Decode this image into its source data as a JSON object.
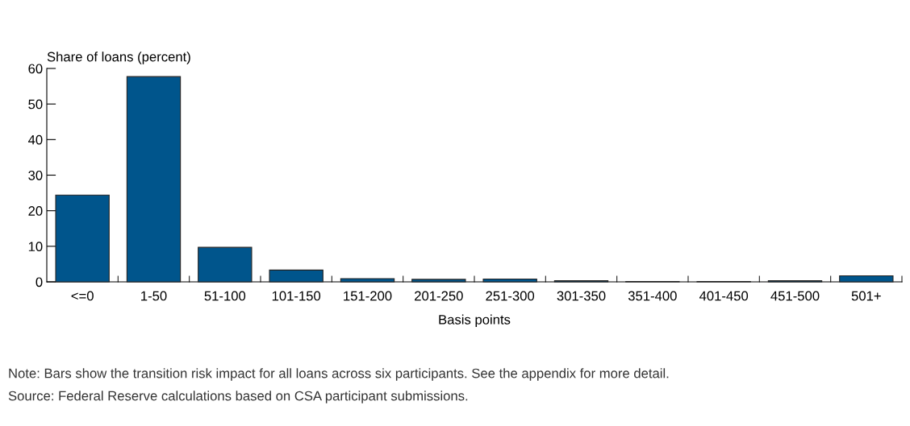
{
  "chart_data": {
    "type": "bar",
    "ylabel": "Share of loans (percent)",
    "xlabel": "Basis points",
    "categories": [
      "<=0",
      "1-50",
      "51-100",
      "101-150",
      "151-200",
      "201-250",
      "251-300",
      "301-350",
      "351-400",
      "401-450",
      "451-500",
      "501+"
    ],
    "values": [
      24.4,
      57.7,
      9.7,
      3.3,
      0.9,
      0.7,
      0.8,
      0.3,
      0.1,
      0.1,
      0.3,
      1.7
    ],
    "color": "#00558c",
    "ylim": [
      0,
      60
    ],
    "yticks": [
      0,
      10,
      20,
      30,
      40,
      50,
      60
    ],
    "grid": false,
    "legend": false,
    "annotations": [
      "Note: Bars show the transition risk impact for all loans across six participants. See the appendix for more detail.",
      "Source: Federal Reserve calculations based on CSA participant submissions."
    ]
  }
}
